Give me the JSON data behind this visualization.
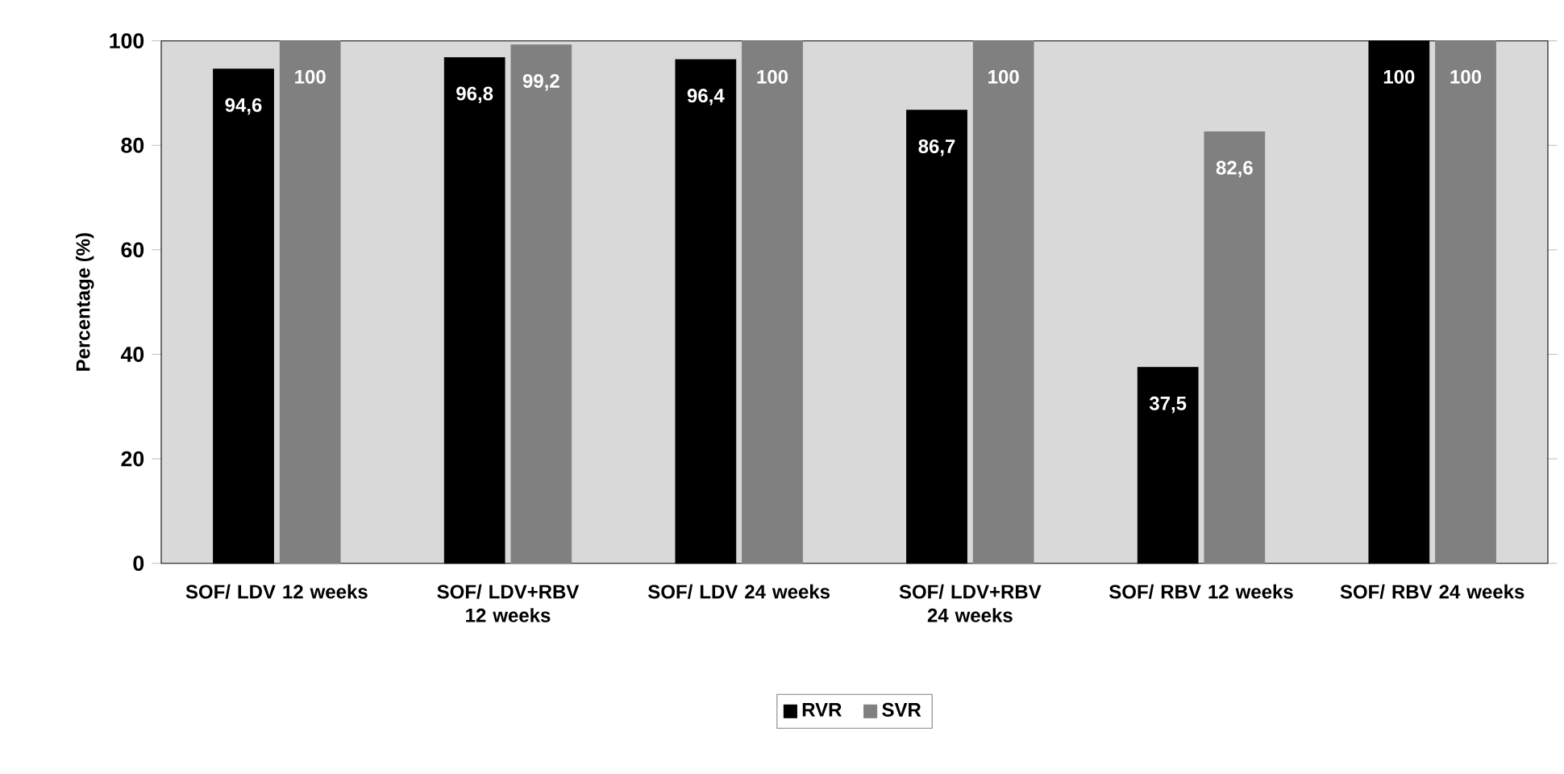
{
  "chart_data": {
    "type": "bar",
    "ylabel": "Percentage (%)",
    "categories": [
      "SOF/ LDV 12 weeks",
      "SOF/ LDV+RBV 12 weeks",
      "SOF/ LDV 24 weeks",
      "SOF/ LDV+RBV 24 weeks",
      "SOF/ RBV 12 weeks",
      "SOF/ RBV 24 weeks"
    ],
    "series": [
      {
        "name": "RVR",
        "color": "#000000",
        "values": [
          94.6,
          96.8,
          96.4,
          86.7,
          37.5,
          100
        ],
        "value_labels": [
          "94,6",
          "96,8",
          "96,4",
          "86,7",
          "37,5",
          "100"
        ]
      },
      {
        "name": "SVR",
        "color": "#808080",
        "values": [
          100,
          99.2,
          100,
          100,
          82.6,
          100
        ],
        "value_labels": [
          "100",
          "99,2",
          "100",
          "100",
          "82,6",
          "100"
        ]
      }
    ],
    "ylim": [
      0,
      100
    ],
    "yticks": [
      0,
      20,
      40,
      60,
      80,
      100
    ],
    "grid": false,
    "legend": "bottom"
  }
}
